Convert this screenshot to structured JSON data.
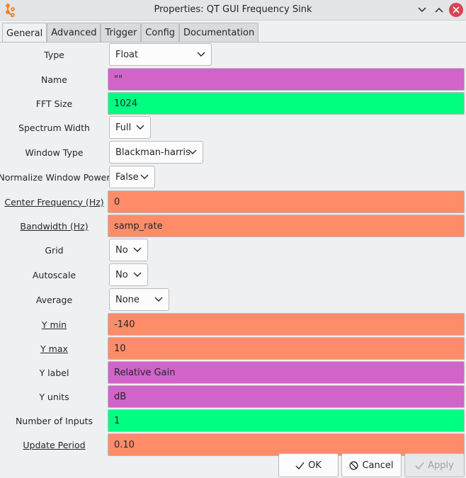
{
  "window": {
    "title": "Properties: QT GUI Frequency Sink",
    "app_icon": "gnuradio-icon",
    "controls": [
      "minimize-icon",
      "maximize-icon",
      "close-icon"
    ],
    "close_color": "#da4453"
  },
  "tabs": [
    {
      "label": "General",
      "active": true
    },
    {
      "label": "Advanced"
    },
    {
      "label": "Trigger"
    },
    {
      "label": "Config"
    },
    {
      "label": "Documentation"
    }
  ],
  "colors": {
    "string_field": "#d163c9",
    "int_field": "#00ff80",
    "real_field": "#ff8c69"
  },
  "params": {
    "type": {
      "label": "Type",
      "value": "Float"
    },
    "name": {
      "label": "Name",
      "value": "\"\""
    },
    "fft_size": {
      "label": "FFT Size",
      "value": "1024"
    },
    "spectrum_width": {
      "label": "Spectrum Width",
      "value": "Full"
    },
    "window_type": {
      "label": "Window Type",
      "value": "Blackman-harris"
    },
    "normalize_window_power": {
      "label": "Normalize Window Power",
      "value": "False"
    },
    "center_frequency": {
      "label": "Center Frequency (Hz)",
      "value": "0"
    },
    "bandwidth": {
      "label": "Bandwidth (Hz)",
      "value": "samp_rate"
    },
    "grid": {
      "label": "Grid",
      "value": "No"
    },
    "autoscale": {
      "label": "Autoscale",
      "value": "No"
    },
    "average": {
      "label": "Average",
      "value": "None"
    },
    "y_min": {
      "label": "Y min",
      "value": "-140"
    },
    "y_max": {
      "label": "Y max",
      "value": "10"
    },
    "y_label": {
      "label": "Y label",
      "value": "Relative Gain"
    },
    "y_units": {
      "label": "Y units",
      "value": "dB"
    },
    "number_of_inputs": {
      "label": "Number of Inputs",
      "value": "1"
    },
    "update_period": {
      "label": "Update Period",
      "value": "0.10"
    }
  },
  "buttons": {
    "ok": {
      "label": "OK",
      "icon": "check-icon"
    },
    "cancel": {
      "label": "Cancel",
      "icon": "cancel-icon"
    },
    "apply": {
      "label": "Apply",
      "icon": "check-icon",
      "disabled": true
    }
  }
}
